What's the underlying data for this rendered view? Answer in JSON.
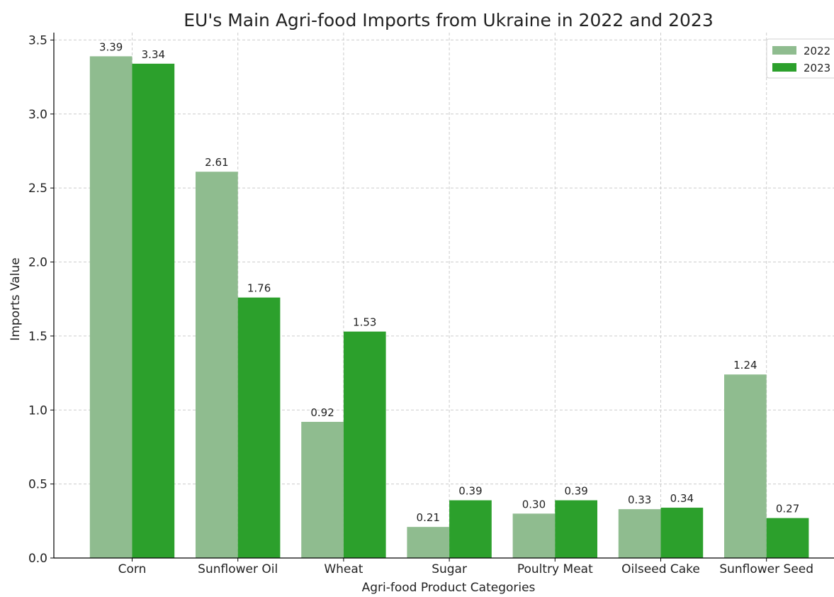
{
  "chart_data": {
    "type": "bar",
    "title": "EU's Main Agri-food Imports from Ukraine in 2022 and 2023",
    "xlabel": "Agri-food Product Categories",
    "ylabel": "Imports Value",
    "categories": [
      "Corn",
      "Sunflower Oil",
      "Wheat",
      "Sugar",
      "Poultry Meat",
      "Oilseed Cake",
      "Sunflower Seed"
    ],
    "series": [
      {
        "name": "2022",
        "color": "#8fbc8f",
        "values": [
          3.39,
          2.61,
          0.92,
          0.21,
          0.3,
          0.33,
          1.24
        ]
      },
      {
        "name": "2023",
        "color": "#2ca02c",
        "values": [
          3.34,
          1.76,
          1.53,
          0.39,
          0.39,
          0.34,
          0.27
        ]
      }
    ],
    "ylim": [
      0,
      3.55
    ],
    "yticks": [
      0.0,
      0.5,
      1.0,
      1.5,
      2.0,
      2.5,
      3.0,
      3.5
    ],
    "grid": true,
    "legend_position": "top-right",
    "data_labels": true
  }
}
